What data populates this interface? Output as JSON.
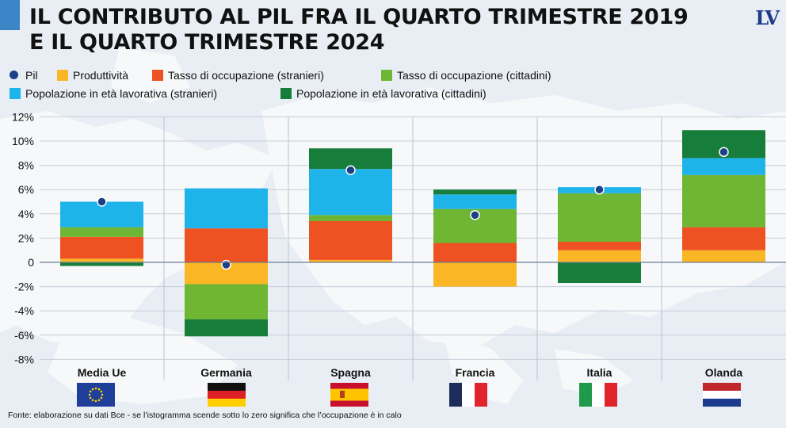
{
  "title_lines": [
    "IL CONTRIBUTO AL PIL FRA IL QUARTO TRIMESTRE 2019",
    "E IL QUARTO TRIMESTRE 2024"
  ],
  "logo": "LV",
  "footnote": "Fonte: elaborazione su dati Bce - se l’istogramma scende sotto lo zero significa che l’occupazione è in calo",
  "legend": [
    {
      "label": "Pil",
      "color": "#1d3f86",
      "shape": "dot"
    },
    {
      "label": "Produttività",
      "color": "#fbb626",
      "shape": "square"
    },
    {
      "label": "Tasso di occupazione (stranieri)",
      "color": "#ee5222",
      "shape": "square"
    },
    {
      "label": "Tasso di occupazione (cittadini)",
      "color": "#6eb633",
      "shape": "square"
    },
    {
      "label": "Popolazione in età lavorativa (stranieri)",
      "color": "#1eb4ea",
      "shape": "square"
    },
    {
      "label": "Popolazione in età lavorativa (cittadini)",
      "color": "#167d3a",
      "shape": "square"
    }
  ],
  "chart_data": {
    "type": "bar",
    "stacked": true,
    "categories": [
      "Media Ue",
      "Germania",
      "Spagna",
      "Francia",
      "Italia",
      "Olanda"
    ],
    "series": [
      {
        "name": "Produttività",
        "color": "#fbb626",
        "values": [
          0.3,
          -1.8,
          0.2,
          -2.0,
          1.0,
          1.0
        ]
      },
      {
        "name": "Tasso di occupazione (stranieri)",
        "color": "#ee5222",
        "values": [
          1.8,
          2.8,
          3.2,
          1.6,
          0.7,
          1.9
        ]
      },
      {
        "name": "Tasso di occupazione (cittadini)",
        "color": "#6eb633",
        "values": [
          0.8,
          -2.9,
          0.5,
          2.8,
          4.0,
          4.3
        ]
      },
      {
        "name": "Popolazione in età lavorativa (stranieri)",
        "color": "#1eb4ea",
        "values": [
          2.1,
          3.3,
          3.8,
          1.2,
          0.5,
          1.4
        ]
      },
      {
        "name": "Popolazione in età lavorativa (cittadini)",
        "color": "#167d3a",
        "values": [
          -0.3,
          -1.4,
          1.7,
          0.4,
          -1.7,
          2.3
        ]
      }
    ],
    "pil": {
      "name": "Pil",
      "color": "#1d3f86",
      "values": [
        5.0,
        -0.2,
        7.6,
        3.9,
        6.0,
        9.1
      ]
    },
    "yticks": [
      "12%",
      "10%",
      "8%",
      "6%",
      "4%",
      "2%",
      "0",
      "-2%",
      "-4%",
      "-6%",
      "-8%"
    ],
    "ylim": [
      -8,
      12
    ],
    "grid": true,
    "legend_position": "top"
  },
  "flags": [
    "eu",
    "de",
    "es",
    "fr",
    "it",
    "nl"
  ]
}
